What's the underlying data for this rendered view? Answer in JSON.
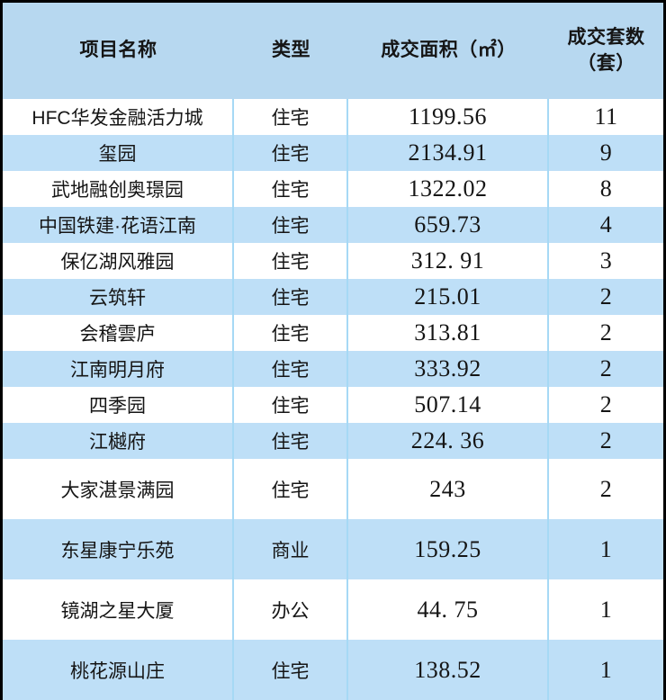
{
  "chart_data": {
    "type": "table",
    "columns": [
      {
        "key": "name",
        "label": "项目名称"
      },
      {
        "key": "type",
        "label": "类型"
      },
      {
        "key": "area",
        "label": "成交面积（㎡）"
      },
      {
        "key": "units",
        "label": "成交套数",
        "label_line2": "（套）"
      }
    ],
    "rows": [
      {
        "name": "HFC华发金融活力城",
        "type": "住宅",
        "area": "1199.56",
        "units": "11",
        "tall": false
      },
      {
        "name": "玺园",
        "type": "住宅",
        "area": "2134.91",
        "units": "9",
        "tall": false
      },
      {
        "name": "武地融创奥璟园",
        "type": "住宅",
        "area": "1322.02",
        "units": "8",
        "tall": false
      },
      {
        "name": "中国铁建·花语江南",
        "type": "住宅",
        "area": "659.73",
        "units": "4",
        "tall": false
      },
      {
        "name": "保亿湖风雅园",
        "type": "住宅",
        "area": "312. 91",
        "units": "3",
        "tall": false
      },
      {
        "name": "云筑轩",
        "type": "住宅",
        "area": "215.01",
        "units": "2",
        "tall": false
      },
      {
        "name": "会稽雲庐",
        "type": "住宅",
        "area": "313.81",
        "units": "2",
        "tall": false
      },
      {
        "name": "江南明月府",
        "type": "住宅",
        "area": "333.92",
        "units": "2",
        "tall": false
      },
      {
        "name": "四季园",
        "type": "住宅",
        "area": "507.14",
        "units": "2",
        "tall": false
      },
      {
        "name": "江樾府",
        "type": "住宅",
        "area": "224. 36",
        "units": "2",
        "tall": false
      },
      {
        "name": "大家湛景满园",
        "type": "住宅",
        "area": "243",
        "units": "2",
        "tall": true
      },
      {
        "name": "东星康宁乐苑",
        "type": "商业",
        "area": "159.25",
        "units": "1",
        "tall": true
      },
      {
        "name": "镜湖之星大厦",
        "type": "办公",
        "area": "44. 75",
        "units": "1",
        "tall": true
      },
      {
        "name": "桃花源山庄",
        "type": "住宅",
        "area": "138.52",
        "units": "1",
        "tall": true
      }
    ]
  },
  "colors": {
    "frame": "#000000",
    "header_bg": "#b7d8f0",
    "row_bg": "#ffffff",
    "row_alt_bg": "#bedff7",
    "divider": "#a6d9f5",
    "text": "#151515"
  }
}
